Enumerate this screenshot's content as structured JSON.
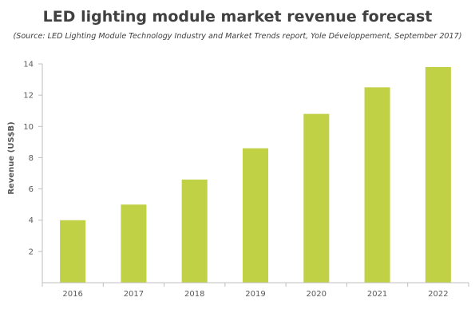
{
  "chart_data": {
    "type": "bar",
    "title": "LED lighting module market revenue forecast",
    "subtitle": "(Source: LED Lighting Module Technology Industry and Market Trends report, Yole Développement, September 2017)",
    "xlabel": "",
    "ylabel": "Revenue (US$B)",
    "categories": [
      "2016",
      "2017",
      "2018",
      "2019",
      "2020",
      "2021",
      "2022"
    ],
    "values": [
      4.0,
      5.0,
      6.6,
      8.6,
      10.8,
      12.5,
      13.8
    ],
    "ylim": [
      0,
      14
    ],
    "yticks": [
      2,
      4,
      6,
      8,
      10,
      12,
      14
    ],
    "grid": false,
    "legend": "none",
    "bar_color": "#c1d146",
    "axis_color": "#bfbfbf"
  }
}
